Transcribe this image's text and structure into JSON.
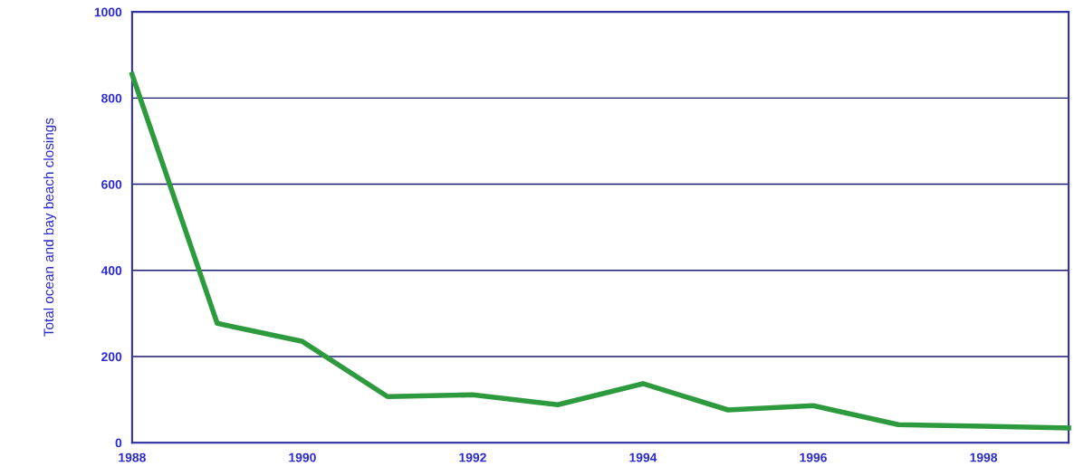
{
  "chart_data": {
    "type": "line",
    "ylabel": "Total ocean and bay beach closings",
    "x": [
      1988,
      1989,
      1990,
      1991,
      1992,
      1993,
      1994,
      1995,
      1996,
      1997,
      1998,
      1999
    ],
    "series": [
      {
        "color": "#2e9a3e",
        "values": [
          855,
          277,
          235,
          107,
          111,
          88,
          137,
          76,
          86,
          42,
          38,
          34
        ]
      }
    ],
    "xlim": [
      1988,
      1999
    ],
    "xticks": [
      1988,
      1990,
      1992,
      1994,
      1996,
      1998
    ],
    "ylim": [
      0,
      1000
    ],
    "yticks": [
      0,
      200,
      400,
      600,
      800,
      1000
    ],
    "grid": "y",
    "marker": "none",
    "line_style": "solid"
  }
}
